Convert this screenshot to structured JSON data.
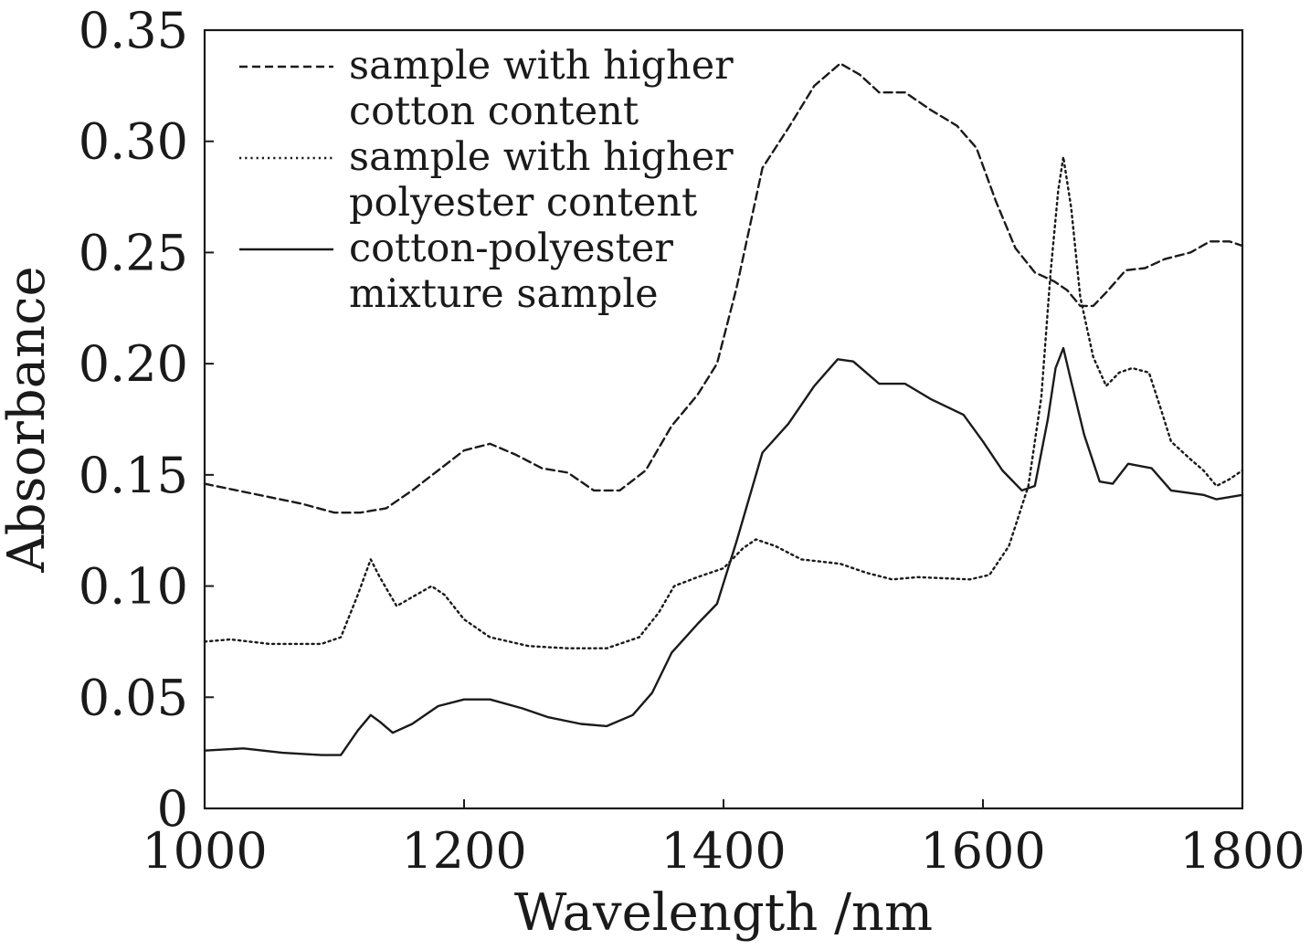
{
  "chart_data": {
    "type": "line",
    "xlabel": "Wavelength /nm",
    "ylabel": "Absorbance",
    "xlim": [
      1000,
      1800
    ],
    "ylim": [
      0,
      0.35
    ],
    "x_ticks": [
      1000,
      1200,
      1400,
      1600,
      1800
    ],
    "x_tick_labels": [
      "1000",
      "1200",
      "1400",
      "1600",
      "1800"
    ],
    "y_ticks": [
      0,
      0.05,
      0.1,
      0.15,
      0.2,
      0.25,
      0.3,
      0.35
    ],
    "y_tick_labels": [
      "0",
      "0.05",
      "0.10",
      "0.15",
      "0.20",
      "0.25",
      "0.30",
      "0.35"
    ],
    "grid": false,
    "legend_position": "top-left",
    "series": [
      {
        "name_lines": [
          "sample with higher",
          "cotton content"
        ],
        "dash": "dashed",
        "color": "#1a1a1a",
        "points": [
          [
            1000,
            0.146
          ],
          [
            1025,
            0.143
          ],
          [
            1050,
            0.14
          ],
          [
            1075,
            0.137
          ],
          [
            1100,
            0.133
          ],
          [
            1120,
            0.133
          ],
          [
            1140,
            0.135
          ],
          [
            1160,
            0.143
          ],
          [
            1180,
            0.152
          ],
          [
            1200,
            0.161
          ],
          [
            1220,
            0.164
          ],
          [
            1240,
            0.159
          ],
          [
            1260,
            0.153
          ],
          [
            1280,
            0.151
          ],
          [
            1300,
            0.143
          ],
          [
            1320,
            0.143
          ],
          [
            1340,
            0.152
          ],
          [
            1360,
            0.172
          ],
          [
            1380,
            0.186
          ],
          [
            1395,
            0.2
          ],
          [
            1410,
            0.234
          ],
          [
            1430,
            0.288
          ],
          [
            1450,
            0.306
          ],
          [
            1470,
            0.325
          ],
          [
            1490,
            0.335
          ],
          [
            1505,
            0.33
          ],
          [
            1520,
            0.322
          ],
          [
            1540,
            0.322
          ],
          [
            1560,
            0.314
          ],
          [
            1580,
            0.307
          ],
          [
            1595,
            0.297
          ],
          [
            1610,
            0.273
          ],
          [
            1625,
            0.252
          ],
          [
            1640,
            0.241
          ],
          [
            1655,
            0.237
          ],
          [
            1665,
            0.233
          ],
          [
            1675,
            0.226
          ],
          [
            1685,
            0.226
          ],
          [
            1695,
            0.232
          ],
          [
            1710,
            0.242
          ],
          [
            1725,
            0.243
          ],
          [
            1740,
            0.247
          ],
          [
            1760,
            0.25
          ],
          [
            1775,
            0.255
          ],
          [
            1790,
            0.255
          ],
          [
            1800,
            0.253
          ]
        ]
      },
      {
        "name_lines": [
          "sample with higher",
          "polyester content"
        ],
        "dash": "dotted",
        "color": "#1a1a1a",
        "points": [
          [
            1000,
            0.075
          ],
          [
            1020,
            0.076
          ],
          [
            1050,
            0.074
          ],
          [
            1090,
            0.074
          ],
          [
            1105,
            0.077
          ],
          [
            1118,
            0.096
          ],
          [
            1128,
            0.112
          ],
          [
            1135,
            0.104
          ],
          [
            1148,
            0.091
          ],
          [
            1160,
            0.095
          ],
          [
            1175,
            0.1
          ],
          [
            1185,
            0.096
          ],
          [
            1200,
            0.085
          ],
          [
            1220,
            0.077
          ],
          [
            1250,
            0.073
          ],
          [
            1280,
            0.072
          ],
          [
            1310,
            0.072
          ],
          [
            1335,
            0.077
          ],
          [
            1350,
            0.088
          ],
          [
            1362,
            0.1
          ],
          [
            1380,
            0.104
          ],
          [
            1400,
            0.108
          ],
          [
            1415,
            0.117
          ],
          [
            1425,
            0.121
          ],
          [
            1440,
            0.118
          ],
          [
            1460,
            0.112
          ],
          [
            1490,
            0.11
          ],
          [
            1510,
            0.106
          ],
          [
            1530,
            0.103
          ],
          [
            1550,
            0.104
          ],
          [
            1590,
            0.103
          ],
          [
            1605,
            0.105
          ],
          [
            1620,
            0.118
          ],
          [
            1635,
            0.145
          ],
          [
            1645,
            0.185
          ],
          [
            1652,
            0.24
          ],
          [
            1658,
            0.278
          ],
          [
            1662,
            0.293
          ],
          [
            1668,
            0.27
          ],
          [
            1675,
            0.23
          ],
          [
            1685,
            0.203
          ],
          [
            1695,
            0.19
          ],
          [
            1705,
            0.196
          ],
          [
            1715,
            0.198
          ],
          [
            1728,
            0.196
          ],
          [
            1738,
            0.178
          ],
          [
            1745,
            0.165
          ],
          [
            1760,
            0.157
          ],
          [
            1770,
            0.152
          ],
          [
            1780,
            0.145
          ],
          [
            1790,
            0.148
          ],
          [
            1800,
            0.152
          ]
        ]
      },
      {
        "name_lines": [
          "cotton-polyester",
          "mixture sample"
        ],
        "dash": "solid",
        "color": "#1a1a1a",
        "points": [
          [
            1000,
            0.026
          ],
          [
            1030,
            0.027
          ],
          [
            1060,
            0.025
          ],
          [
            1090,
            0.024
          ],
          [
            1105,
            0.024
          ],
          [
            1118,
            0.035
          ],
          [
            1128,
            0.042
          ],
          [
            1135,
            0.039
          ],
          [
            1145,
            0.034
          ],
          [
            1160,
            0.038
          ],
          [
            1180,
            0.046
          ],
          [
            1200,
            0.049
          ],
          [
            1220,
            0.049
          ],
          [
            1245,
            0.045
          ],
          [
            1265,
            0.041
          ],
          [
            1290,
            0.038
          ],
          [
            1310,
            0.037
          ],
          [
            1330,
            0.042
          ],
          [
            1345,
            0.052
          ],
          [
            1360,
            0.07
          ],
          [
            1380,
            0.083
          ],
          [
            1395,
            0.092
          ],
          [
            1410,
            0.12
          ],
          [
            1430,
            0.16
          ],
          [
            1450,
            0.173
          ],
          [
            1470,
            0.19
          ],
          [
            1488,
            0.202
          ],
          [
            1500,
            0.201
          ],
          [
            1520,
            0.191
          ],
          [
            1540,
            0.191
          ],
          [
            1560,
            0.184
          ],
          [
            1585,
            0.177
          ],
          [
            1600,
            0.165
          ],
          [
            1615,
            0.152
          ],
          [
            1630,
            0.143
          ],
          [
            1640,
            0.145
          ],
          [
            1650,
            0.175
          ],
          [
            1656,
            0.198
          ],
          [
            1662,
            0.207
          ],
          [
            1668,
            0.192
          ],
          [
            1678,
            0.168
          ],
          [
            1690,
            0.147
          ],
          [
            1700,
            0.146
          ],
          [
            1712,
            0.155
          ],
          [
            1730,
            0.153
          ],
          [
            1745,
            0.143
          ],
          [
            1770,
            0.141
          ],
          [
            1780,
            0.139
          ],
          [
            1800,
            0.141
          ]
        ]
      }
    ]
  }
}
